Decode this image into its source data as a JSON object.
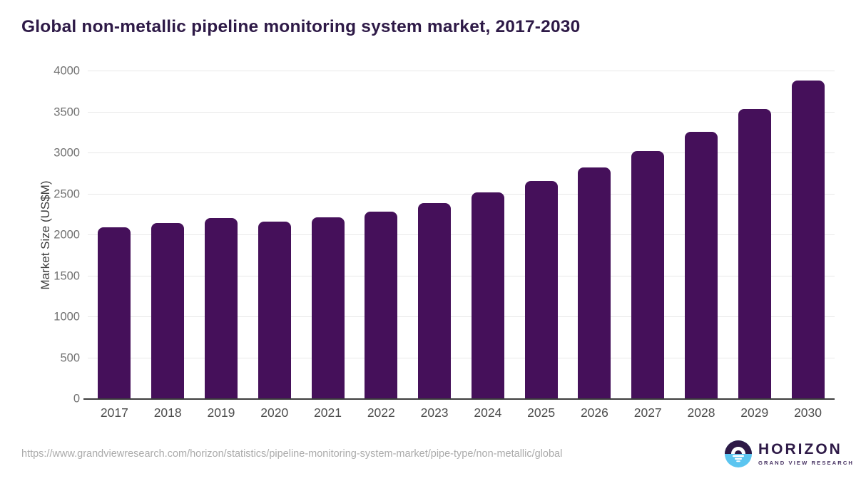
{
  "title": "Global non-metallic pipeline monitoring system market, 2017-2030",
  "chart_data": {
    "type": "bar",
    "title": "Global non-metallic pipeline monitoring system market, 2017-2030",
    "categories": [
      "2017",
      "2018",
      "2019",
      "2020",
      "2021",
      "2022",
      "2023",
      "2024",
      "2025",
      "2026",
      "2027",
      "2028",
      "2029",
      "2030"
    ],
    "values": [
      2095,
      2150,
      2210,
      2165,
      2220,
      2290,
      2390,
      2520,
      2660,
      2825,
      3030,
      3265,
      3540,
      3890
    ],
    "xlabel": "",
    "ylabel": "Market Size (US$M)",
    "ylim": [
      0,
      4000
    ],
    "yticks": [
      0,
      500,
      1000,
      1500,
      2000,
      2500,
      3000,
      3500,
      4000
    ],
    "grid": true,
    "legend": "none",
    "bar_color": "#45105a"
  },
  "colors": {
    "bar": "#45105a",
    "title_text": "#2e1a47",
    "gridline": "#e8e8e8",
    "axis_line": "#3d3d3d",
    "y_tick_text": "#717171",
    "x_tick_text": "#4d4d4d",
    "url_text": "#ababab",
    "logo_blue": "#5bc5f0",
    "logo_purple": "#2e1a47"
  },
  "footer": {
    "source_url": "https://www.grandviewresearch.com/horizon/statistics/pipeline-monitoring-system-market/pipe-type/non-metallic/global",
    "logo_title": "HORIZON",
    "logo_subtitle": "GRAND VIEW RESEARCH"
  }
}
